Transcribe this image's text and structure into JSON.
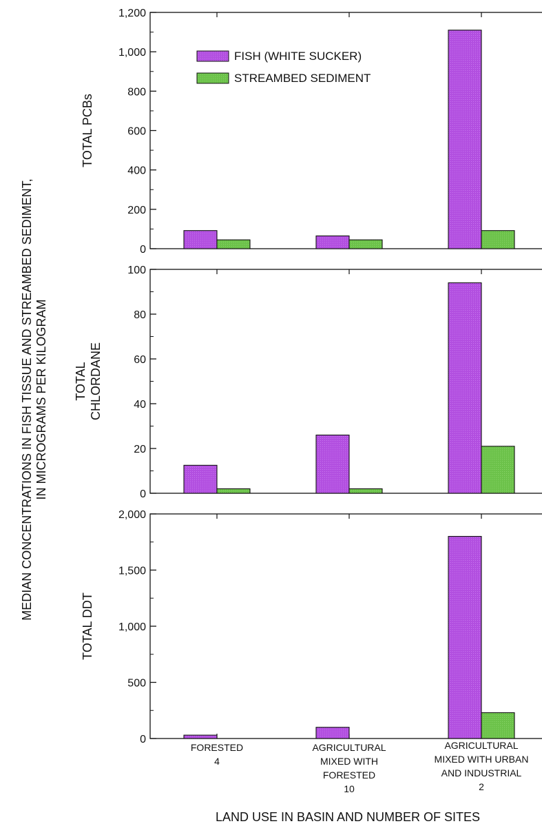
{
  "chart_data": {
    "type": "bar",
    "ylabel": [
      "MEDIAN CONCENTRATIONS IN FISH TISSUE AND STREAMBED SEDIMENT,",
      "IN MICROGRAMS PER KILOGRAM"
    ],
    "xlabel": "LAND USE IN BASIN AND NUMBER OF SITES",
    "categories": [
      [
        "FORESTED",
        "4"
      ],
      [
        "AGRICULTURAL",
        "MIXED WITH",
        "FORESTED",
        "10"
      ],
      [
        "AGRICULTURAL",
        "MIXED WITH URBAN",
        "AND INDUSTRIAL",
        "2"
      ]
    ],
    "legend": {
      "placement": "top-left of first panel",
      "entries": [
        {
          "name": "FISH (WHITE SUCKER)",
          "color": "#b24fe0"
        },
        {
          "name": "STREAMBED SEDIMENT",
          "color": "#6cc24a"
        }
      ]
    },
    "panels": [
      {
        "label": [
          "TOTAL PCBs"
        ],
        "ylim": [
          0,
          1200
        ],
        "ticks": [
          0,
          200,
          400,
          600,
          800,
          1000,
          1200
        ],
        "tick_labels": [
          "0",
          "200",
          "400",
          "600",
          "800",
          "1,000",
          "1,200"
        ],
        "series": [
          {
            "name": "FISH (WHITE SUCKER)",
            "values": [
              92,
              65,
              1110
            ]
          },
          {
            "name": "STREAMBED SEDIMENT",
            "values": [
              45,
              45,
              92
            ]
          }
        ]
      },
      {
        "label": [
          "TOTAL",
          "CHLORDANE"
        ],
        "ylim": [
          0,
          100
        ],
        "ticks": [
          0,
          20,
          40,
          60,
          80,
          100
        ],
        "tick_labels": [
          "0",
          "20",
          "40",
          "60",
          "80",
          "100"
        ],
        "series": [
          {
            "name": "FISH (WHITE SUCKER)",
            "values": [
              12.5,
              26,
              94
            ]
          },
          {
            "name": "STREAMBED SEDIMENT",
            "values": [
              2,
              2,
              21
            ]
          }
        ]
      },
      {
        "label": [
          "TOTAL DDT"
        ],
        "ylim": [
          0,
          2000
        ],
        "ticks": [
          0,
          500,
          1000,
          1500,
          2000
        ],
        "tick_labels": [
          "0",
          "500",
          "1,000",
          "1,500",
          "2,000"
        ],
        "series": [
          {
            "name": "FISH (WHITE SUCKER)",
            "values": [
              30,
              100,
              1800
            ]
          },
          {
            "name": "STREAMBED SEDIMENT",
            "values": [
              0,
              0,
              230
            ]
          }
        ]
      }
    ]
  }
}
